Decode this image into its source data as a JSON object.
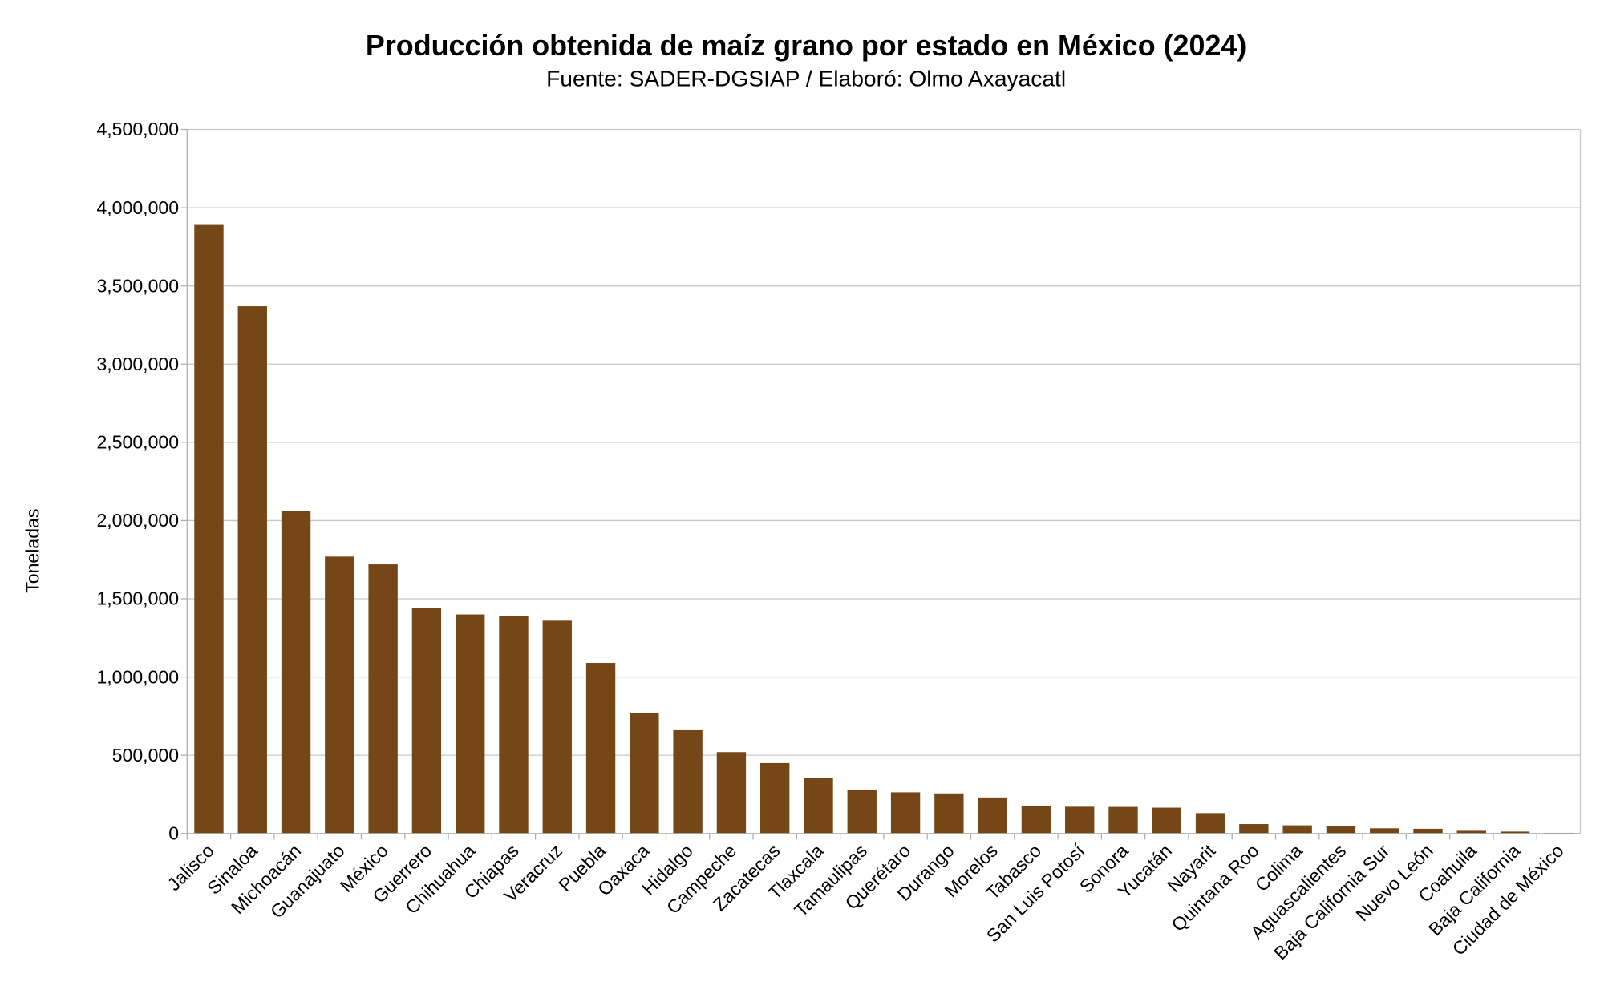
{
  "chart_data": {
    "type": "bar",
    "title": "Producción obtenida de maíz grano por estado en México (2024)",
    "subtitle": "Fuente: SADER-DGSIAP / Elaboró: Olmo Axayacatl",
    "xlabel": "",
    "ylabel": "Toneladas",
    "ylim": [
      0,
      4500000
    ],
    "yticks": [
      0,
      500000,
      1000000,
      1500000,
      2000000,
      2500000,
      3000000,
      3500000,
      4000000,
      4500000
    ],
    "ytick_labels": [
      "0",
      "500,000",
      "1,000,000",
      "1,500,000",
      "2,000,000",
      "2,500,000",
      "3,000,000",
      "3,500,000",
      "4,000,000",
      "4,500,000"
    ],
    "grid": true,
    "bar_color": "#754616",
    "categories": [
      "Jalisco",
      "Sinaloa",
      "Michoacán",
      "Guanajuato",
      "México",
      "Guerrero",
      "Chihuahua",
      "Chiapas",
      "Veracruz",
      "Puebla",
      "Oaxaca",
      "Hidalgo",
      "Campeche",
      "Zacatecas",
      "Tlaxcala",
      "Tamaulipas",
      "Querétaro",
      "Durango",
      "Morelos",
      "Tabasco",
      "San Luis Potosí",
      "Sonora",
      "Yucatán",
      "Nayarit",
      "Quintana Roo",
      "Colima",
      "Aguascalientes",
      "Baja California Sur",
      "Nuevo León",
      "Coahuila",
      "Baja California",
      "Ciudad de México"
    ],
    "values": [
      3890000,
      3370000,
      2060000,
      1770000,
      1720000,
      1440000,
      1400000,
      1390000,
      1360000,
      1090000,
      770000,
      660000,
      520000,
      450000,
      355000,
      276000,
      263000,
      256000,
      230000,
      178000,
      171000,
      170000,
      165000,
      130000,
      60000,
      52000,
      50000,
      33000,
      30000,
      17000,
      12000,
      4000
    ]
  }
}
